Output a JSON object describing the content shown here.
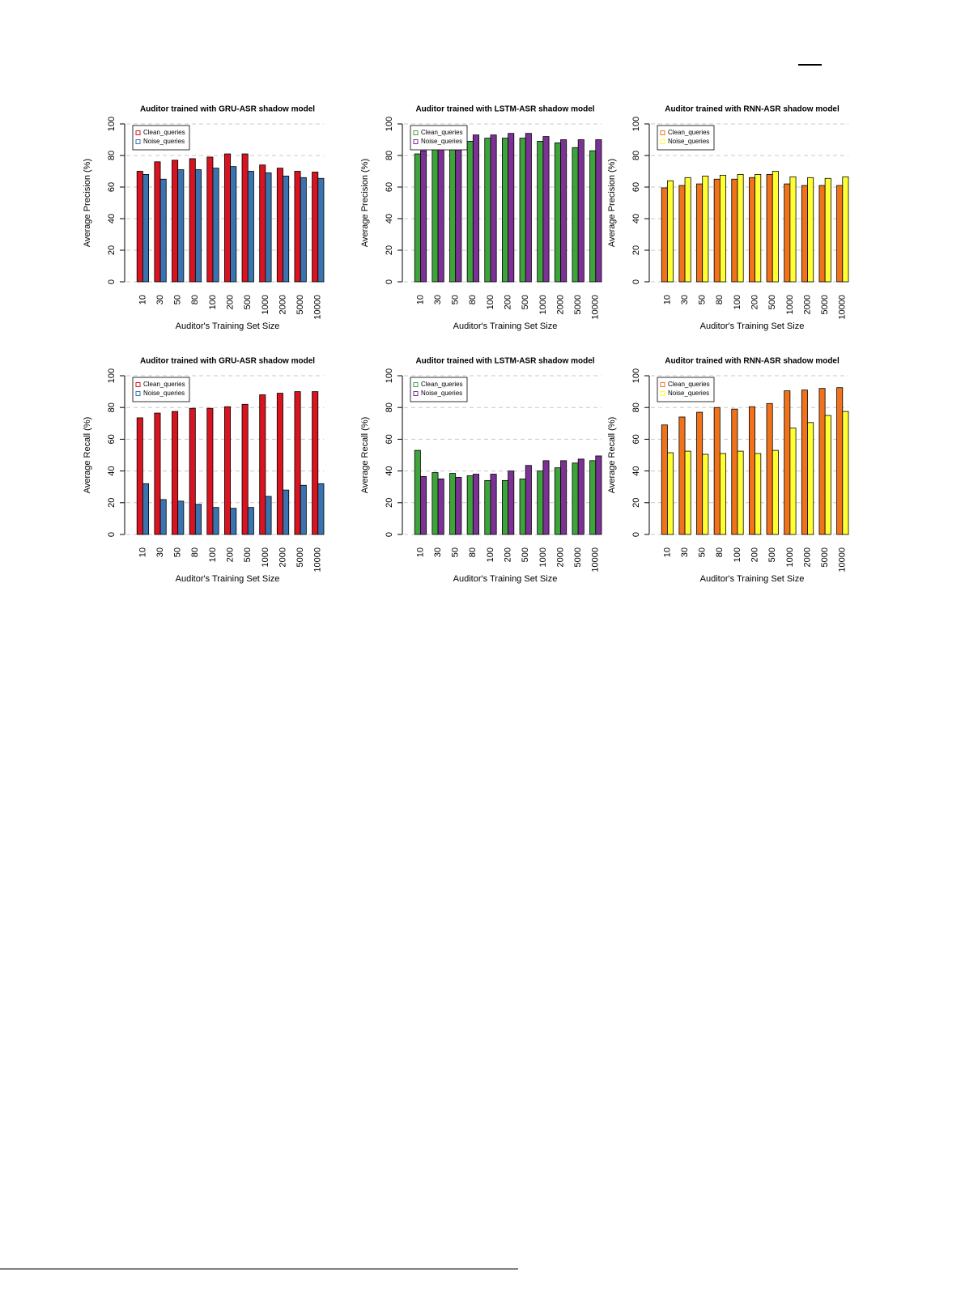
{
  "chart_data": [
    {
      "type": "bar",
      "title": "Auditor trained with GRU-ASR shadow model",
      "xlabel": "Auditor's Training Set Size",
      "ylabel": "Average Precision (%)",
      "categories": [
        "10",
        "30",
        "50",
        "80",
        "100",
        "200",
        "500",
        "1000",
        "2000",
        "5000",
        "10000"
      ],
      "series": [
        {
          "name": "Clean_queries",
          "color": "#d7141f",
          "values": [
            70,
            76,
            77,
            78,
            79,
            81,
            81,
            74,
            72,
            70,
            69.5
          ]
        },
        {
          "name": "Noise_queries",
          "color": "#3a74b0",
          "values": [
            68,
            65,
            71,
            71,
            72,
            73,
            70,
            69,
            67,
            66,
            65.5
          ]
        }
      ],
      "ylim": [
        0,
        100
      ],
      "yticks": [
        0,
        20,
        40,
        60,
        80,
        100
      ],
      "grid": true,
      "legend": "top-left"
    },
    {
      "type": "bar",
      "title": "Auditor trained with LSTM-ASR shadow model",
      "xlabel": "Auditor's Training Set Size",
      "ylabel": "Average Precision (%)",
      "categories": [
        "10",
        "30",
        "50",
        "80",
        "100",
        "200",
        "500",
        "1000",
        "2000",
        "5000",
        "10000"
      ],
      "series": [
        {
          "name": "Clean_queries",
          "color": "#3fa33c",
          "values": [
            81,
            85,
            85,
            89,
            91,
            91,
            91,
            89,
            88,
            85,
            83
          ]
        },
        {
          "name": "Noise_queries",
          "color": "#7b3294",
          "values": [
            83,
            86,
            87,
            93,
            93,
            94,
            94,
            92,
            90,
            90,
            90
          ]
        }
      ],
      "ylim": [
        0,
        100
      ],
      "yticks": [
        0,
        20,
        40,
        60,
        80,
        100
      ],
      "grid": true,
      "legend": "top-left"
    },
    {
      "type": "bar",
      "title": "Auditor trained with RNN-ASR shadow model",
      "xlabel": "Auditor's Training Set Size",
      "ylabel": "Average Precision (%)",
      "categories": [
        "10",
        "30",
        "50",
        "80",
        "100",
        "200",
        "500",
        "1000",
        "2000",
        "5000",
        "10000"
      ],
      "series": [
        {
          "name": "Clean_queries",
          "color": "#f0731c",
          "values": [
            59.5,
            61,
            62,
            65,
            65,
            66,
            68,
            62,
            61,
            61,
            61
          ]
        },
        {
          "name": "Noise_queries",
          "color": "#ffff33",
          "values": [
            64,
            66,
            67,
            67.5,
            68,
            68,
            70,
            66.5,
            66,
            65.5,
            66.5
          ]
        }
      ],
      "ylim": [
        0,
        100
      ],
      "yticks": [
        0,
        20,
        40,
        60,
        80,
        100
      ],
      "grid": true,
      "legend": "top-left"
    },
    {
      "type": "bar",
      "title": "Auditor trained with GRU-ASR shadow model",
      "xlabel": "Auditor's Training Set Size",
      "ylabel": "Average Recall (%)",
      "categories": [
        "10",
        "30",
        "50",
        "80",
        "100",
        "200",
        "500",
        "1000",
        "2000",
        "5000",
        "10000"
      ],
      "series": [
        {
          "name": "Clean_queries",
          "color": "#d7141f",
          "values": [
            73.5,
            76.5,
            77.5,
            79.5,
            79.5,
            80.5,
            82,
            88,
            89,
            90,
            90
          ]
        },
        {
          "name": "Noise_queries",
          "color": "#3a74b0",
          "values": [
            32,
            22,
            21,
            19,
            17,
            16.5,
            17,
            24,
            28,
            31,
            32
          ]
        }
      ],
      "ylim": [
        0,
        100
      ],
      "yticks": [
        0,
        20,
        40,
        60,
        80,
        100
      ],
      "grid": true,
      "legend": "top-left"
    },
    {
      "type": "bar",
      "title": "Auditor trained with LSTM-ASR shadow model",
      "xlabel": "Auditor's Training Set Size",
      "ylabel": "Average Recall (%)",
      "categories": [
        "10",
        "30",
        "50",
        "80",
        "100",
        "200",
        "500",
        "1000",
        "2000",
        "5000",
        "10000"
      ],
      "series": [
        {
          "name": "Clean_queries",
          "color": "#3fa33c",
          "values": [
            53,
            39,
            38.5,
            37,
            34,
            34,
            35,
            40,
            42,
            45,
            46.5
          ]
        },
        {
          "name": "Noise_queries",
          "color": "#7b3294",
          "values": [
            36.5,
            35,
            36,
            38,
            38,
            40,
            43.5,
            46.5,
            46.5,
            47.5,
            49.5
          ]
        }
      ],
      "ylim": [
        0,
        100
      ],
      "yticks": [
        0,
        20,
        40,
        60,
        80,
        100
      ],
      "grid": true,
      "legend": "top-left"
    },
    {
      "type": "bar",
      "title": "Auditor trained with RNN-ASR shadow model",
      "xlabel": "Auditor's Training Set Size",
      "ylabel": "Average Recall (%)",
      "categories": [
        "10",
        "30",
        "50",
        "80",
        "100",
        "200",
        "500",
        "1000",
        "2000",
        "5000",
        "10000"
      ],
      "series": [
        {
          "name": "Clean_queries",
          "color": "#f0731c",
          "values": [
            69,
            74,
            77,
            80,
            79,
            80.5,
            82.5,
            90.5,
            91,
            92,
            92.5
          ]
        },
        {
          "name": "Noise_queries",
          "color": "#ffff33",
          "values": [
            51.5,
            52.5,
            50.5,
            51,
            52.5,
            51,
            53,
            67,
            70.5,
            75,
            77.5
          ]
        }
      ],
      "ylim": [
        0,
        100
      ],
      "yticks": [
        0,
        20,
        40,
        60,
        80,
        100
      ],
      "grid": true,
      "legend": "top-left"
    }
  ]
}
